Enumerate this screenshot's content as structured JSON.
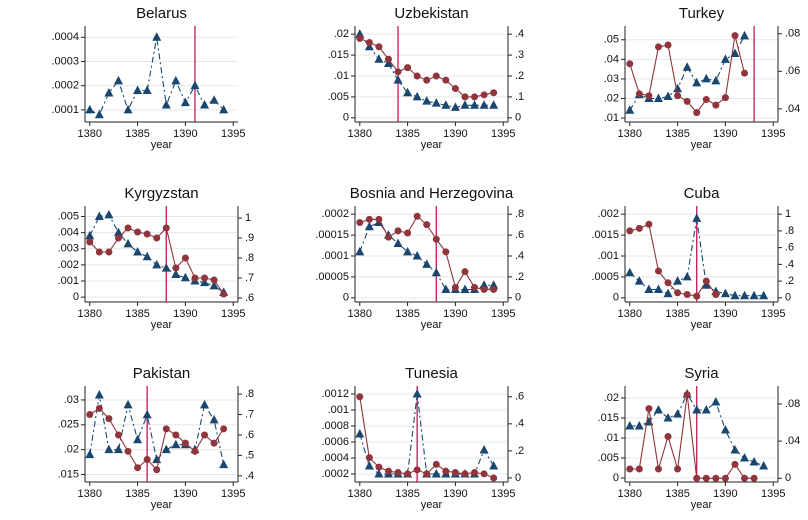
{
  "chart_data": [
    {
      "type": "line",
      "title": "Belarus",
      "xlabel": "year",
      "x": [
        1380,
        1381,
        1382,
        1383,
        1384,
        1385,
        1386,
        1387,
        1388,
        1389,
        1390,
        1391,
        1392,
        1393,
        1394
      ],
      "xlim": [
        1379.5,
        1395.5
      ],
      "xticks": [
        1380,
        1385,
        1390,
        1395
      ],
      "ylim": [
        5e-05,
        0.00043
      ],
      "yticks": [
        {
          "value": 0.0001,
          "label": ".0001"
        },
        {
          "value": 0.0002,
          "label": ".0002"
        },
        {
          "value": 0.0003,
          "label": ".0003"
        },
        {
          "value": 0.0004,
          "label": ".0004"
        }
      ],
      "vline": 1391,
      "grid": true,
      "series": [
        {
          "color": "#1a476f",
          "marker": "triangle",
          "dashed": true,
          "values": [
            0.0001,
            8e-05,
            0.00017,
            0.00022,
            0.0001,
            0.00018,
            0.00018,
            0.0004,
            0.00012,
            0.00022,
            0.00013,
            0.0002,
            0.00012,
            0.00014,
            0.0001
          ]
        }
      ]
    },
    {
      "type": "line",
      "title": "Uzbekistan",
      "xlabel": "year",
      "x": [
        1380,
        1381,
        1382,
        1383,
        1384,
        1385,
        1386,
        1387,
        1388,
        1389,
        1390,
        1391,
        1392,
        1393,
        1394
      ],
      "xlim": [
        1379.5,
        1395.5
      ],
      "xticks": [
        1380,
        1385,
        1390,
        1395
      ],
      "ylim": [
        -0.001,
        0.021
      ],
      "yticks": [
        0,
        {
          "value": 0.005,
          "label": ".005"
        },
        {
          "value": 0.01,
          "label": ".01"
        },
        {
          "value": 0.015,
          "label": ".015"
        },
        {
          "value": 0.02,
          "label": ".02"
        }
      ],
      "y2lim": [
        -0.02,
        0.42
      ],
      "y2ticks": [
        0,
        {
          "value": 0.1,
          "label": ".1"
        },
        {
          "value": 0.2,
          "label": ".2"
        },
        {
          "value": 0.3,
          "label": ".3"
        },
        {
          "value": 0.4,
          "label": ".4"
        }
      ],
      "vline": 1384,
      "grid": true,
      "series": [
        {
          "color": "#1a476f",
          "marker": "triangle",
          "dashed": true,
          "values": [
            0.02,
            0.017,
            0.014,
            0.013,
            0.009,
            0.006,
            0.005,
            0.004,
            0.0035,
            0.003,
            0.0025,
            0.003,
            0.003,
            0.003,
            0.003
          ]
        },
        {
          "color": "#90353b",
          "marker": "circle",
          "axis": "y2",
          "values": [
            0.38,
            0.36,
            0.34,
            0.28,
            0.22,
            0.24,
            0.2,
            0.18,
            0.2,
            0.18,
            0.14,
            0.1,
            0.1,
            0.11,
            0.12
          ]
        }
      ]
    },
    {
      "type": "line",
      "title": "Turkey",
      "xlabel": "year",
      "x": [
        1380,
        1381,
        1382,
        1383,
        1384,
        1385,
        1386,
        1387,
        1388,
        1389,
        1390,
        1391,
        1392
      ],
      "xlim": [
        1379.5,
        1395.5
      ],
      "xticks": [
        1380,
        1385,
        1390,
        1395
      ],
      "ylim": [
        0.008,
        0.055
      ],
      "yticks": [
        {
          "value": 0.01,
          "label": ".01"
        },
        {
          "value": 0.02,
          "label": ".02"
        },
        {
          "value": 0.03,
          "label": ".03"
        },
        {
          "value": 0.04,
          "label": ".04"
        },
        {
          "value": 0.05,
          "label": ".05"
        }
      ],
      "y2lim": [
        0.033,
        0.082
      ],
      "y2ticks": [
        {
          "value": 0.04,
          "label": ".04"
        },
        {
          "value": 0.06,
          "label": ".06"
        },
        {
          "value": 0.08,
          "label": ".08"
        }
      ],
      "vline": 1393,
      "grid": true,
      "series": [
        {
          "color": "#1a476f",
          "marker": "triangle",
          "dashed": true,
          "values": [
            0.014,
            0.022,
            0.02,
            0.02,
            0.021,
            0.025,
            0.036,
            0.028,
            0.03,
            0.029,
            0.04,
            0.043,
            0.052
          ]
        },
        {
          "color": "#90353b",
          "marker": "circle",
          "axis": "y2",
          "values": [
            0.064,
            0.048,
            0.047,
            0.073,
            0.074,
            0.047,
            0.044,
            0.038,
            0.045,
            0.042,
            0.046,
            0.079,
            0.059
          ]
        }
      ]
    },
    {
      "type": "line",
      "title": "Kyrgyzstan",
      "xlabel": "year",
      "x": [
        1380,
        1381,
        1382,
        1383,
        1384,
        1385,
        1386,
        1387,
        1388,
        1389,
        1390,
        1391,
        1392,
        1393,
        1394
      ],
      "xlim": [
        1379.5,
        1395.5
      ],
      "xticks": [
        1380,
        1385,
        1390,
        1395
      ],
      "ylim": [
        -0.0003,
        0.0054
      ],
      "yticks": [
        0,
        {
          "value": 0.001,
          "label": ".001"
        },
        {
          "value": 0.002,
          "label": ".002"
        },
        {
          "value": 0.003,
          "label": ".003"
        },
        {
          "value": 0.004,
          "label": ".004"
        },
        {
          "value": 0.005,
          "label": ".005"
        }
      ],
      "y2lim": [
        0.58,
        1.04
      ],
      "y2ticks": [
        {
          "value": 0.6,
          "label": ".6"
        },
        {
          "value": 0.7,
          "label": ".7"
        },
        {
          "value": 0.8,
          "label": ".8"
        },
        {
          "value": 0.9,
          "label": ".9"
        },
        1
      ],
      "vline": 1388,
      "grid": true,
      "series": [
        {
          "color": "#1a476f",
          "marker": "triangle",
          "dashed": true,
          "values": [
            0.0038,
            0.005,
            0.0051,
            0.004,
            0.0033,
            0.0028,
            0.0025,
            0.002,
            0.0018,
            0.0014,
            0.0012,
            0.001,
            0.0009,
            0.0007,
            0.0003
          ]
        },
        {
          "color": "#90353b",
          "marker": "circle",
          "axis": "y2",
          "values": [
            0.88,
            0.83,
            0.83,
            0.9,
            0.95,
            0.93,
            0.92,
            0.9,
            0.95,
            0.75,
            0.8,
            0.7,
            0.7,
            0.69,
            0.62
          ]
        }
      ]
    },
    {
      "type": "line",
      "title": "Bosnia and Herzegovina",
      "xlabel": "year",
      "x": [
        1380,
        1381,
        1382,
        1383,
        1384,
        1385,
        1386,
        1387,
        1388,
        1389,
        1390,
        1391,
        1392,
        1393,
        1394
      ],
      "xlim": [
        1379.5,
        1395.5
      ],
      "xticks": [
        1380,
        1385,
        1390,
        1395
      ],
      "ylim": [
        -1e-05,
        0.00021
      ],
      "yticks": [
        0,
        {
          "value": 5e-05,
          "label": ".00005"
        },
        {
          "value": 0.0001,
          "label": ".0001"
        },
        {
          "value": 0.00015,
          "label": ".00015"
        },
        {
          "value": 0.0002,
          "label": ".0002"
        }
      ],
      "y2lim": [
        -0.04,
        0.84
      ],
      "y2ticks": [
        0,
        {
          "value": 0.2,
          "label": ".2"
        },
        {
          "value": 0.4,
          "label": ".4"
        },
        {
          "value": 0.6,
          "label": ".6"
        },
        {
          "value": 0.8,
          "label": ".8"
        }
      ],
      "vline": 1388,
      "grid": true,
      "series": [
        {
          "color": "#1a476f",
          "marker": "triangle",
          "dashed": true,
          "values": [
            0.00011,
            0.00017,
            0.00018,
            0.00015,
            0.00013,
            0.00011,
            0.0001,
            8e-05,
            6e-05,
            2e-05,
            2e-05,
            2e-05,
            2e-05,
            3e-05,
            3e-05
          ]
        },
        {
          "color": "#90353b",
          "marker": "circle",
          "axis": "y2",
          "values": [
            0.72,
            0.75,
            0.75,
            0.58,
            0.64,
            0.62,
            0.78,
            0.7,
            0.56,
            0.44,
            0.1,
            0.25,
            0.1,
            0.08,
            0.08
          ]
        }
      ]
    },
    {
      "type": "line",
      "title": "Cuba",
      "xlabel": "year",
      "x": [
        1380,
        1381,
        1382,
        1383,
        1384,
        1385,
        1386,
        1387,
        1388,
        1389,
        1390,
        1391,
        1392,
        1393,
        1394
      ],
      "xlim": [
        1379.5,
        1395.5
      ],
      "xticks": [
        1380,
        1385,
        1390,
        1395
      ],
      "ylim": [
        -0.0001,
        0.0021
      ],
      "yticks": [
        0,
        {
          "value": 0.0005,
          "label": ".0005"
        },
        {
          "value": 0.001,
          "label": ".001"
        },
        {
          "value": 0.0015,
          "label": ".0015"
        },
        {
          "value": 0.002,
          "label": ".002"
        }
      ],
      "y2lim": [
        -0.05,
        1.05
      ],
      "y2ticks": [
        0,
        {
          "value": 0.2,
          "label": ".2"
        },
        {
          "value": 0.4,
          "label": ".4"
        },
        {
          "value": 0.6,
          "label": ".6"
        },
        {
          "value": 0.8,
          "label": ".8"
        },
        1
      ],
      "vline": 1387,
      "grid": true,
      "series": [
        {
          "color": "#1a476f",
          "marker": "triangle",
          "dashed": true,
          "values": [
            0.0006,
            0.0004,
            0.0002,
            0.0002,
            0.0001,
            0.0004,
            0.0005,
            0.0019,
            0.0003,
            0.00015,
            0.0001,
            5e-05,
            5e-05,
            5e-05,
            5e-05
          ]
        },
        {
          "color": "#90353b",
          "marker": "circle",
          "axis": "y2",
          "values": [
            0.8,
            0.83,
            0.88,
            0.32,
            0.18,
            0.06,
            0.04,
            0.02,
            0.2,
            0.04,
            null,
            null,
            null,
            null,
            null
          ]
        }
      ]
    },
    {
      "type": "line",
      "title": "Pakistan",
      "xlabel": "year",
      "x": [
        1380,
        1381,
        1382,
        1383,
        1384,
        1385,
        1386,
        1387,
        1388,
        1389,
        1390,
        1391,
        1392,
        1393,
        1394
      ],
      "xlim": [
        1379.5,
        1395.5
      ],
      "xticks": [
        1380,
        1385,
        1390,
        1395
      ],
      "ylim": [
        0.0135,
        0.032
      ],
      "yticks": [
        {
          "value": 0.015,
          "label": ".015"
        },
        {
          "value": 0.02,
          "label": ".02"
        },
        {
          "value": 0.025,
          "label": ".025"
        },
        {
          "value": 0.03,
          "label": ".03"
        }
      ],
      "y2lim": [
        0.37,
        0.82
      ],
      "y2ticks": [
        {
          "value": 0.4,
          "label": ".4"
        },
        {
          "value": 0.5,
          "label": ".5"
        },
        {
          "value": 0.6,
          "label": ".6"
        },
        {
          "value": 0.7,
          "label": ".7"
        },
        {
          "value": 0.8,
          "label": ".8"
        }
      ],
      "vline": 1386,
      "grid": true,
      "series": [
        {
          "color": "#1a476f",
          "marker": "triangle",
          "dashed": true,
          "values": [
            0.019,
            0.031,
            0.02,
            0.02,
            0.029,
            0.022,
            0.027,
            0.018,
            0.02,
            0.021,
            0.021,
            0.02,
            0.029,
            0.026,
            0.017
          ]
        },
        {
          "color": "#90353b",
          "marker": "circle",
          "axis": "y2",
          "values": [
            0.7,
            0.73,
            0.68,
            0.6,
            0.52,
            0.44,
            0.48,
            0.43,
            0.63,
            0.6,
            0.56,
            0.52,
            0.6,
            0.56,
            0.63
          ]
        }
      ]
    },
    {
      "type": "line",
      "title": "Tunesia",
      "xlabel": "year",
      "x": [
        1380,
        1381,
        1382,
        1383,
        1384,
        1385,
        1386,
        1387,
        1388,
        1389,
        1390,
        1391,
        1392,
        1393,
        1394
      ],
      "xlim": [
        1379.5,
        1395.5
      ],
      "xticks": [
        1380,
        1385,
        1390,
        1395
      ],
      "ylim": [
        0.0001,
        0.00125
      ],
      "yticks": [
        {
          "value": 0.0002,
          "label": ".0002"
        },
        {
          "value": 0.0004,
          "label": ".0004"
        },
        {
          "value": 0.0006,
          "label": ".0006"
        },
        {
          "value": 0.0008,
          "label": ".0008"
        },
        {
          "value": 0.001,
          "label": ".001"
        },
        {
          "value": 0.0012,
          "label": ".0012"
        }
      ],
      "y2lim": [
        -0.03,
        0.65
      ],
      "y2ticks": [
        0,
        {
          "value": 0.2,
          "label": ".2"
        },
        {
          "value": 0.4,
          "label": ".4"
        },
        {
          "value": 0.6,
          "label": ".6"
        }
      ],
      "vline": 1386,
      "grid": true,
      "series": [
        {
          "color": "#1a476f",
          "marker": "triangle",
          "dashed": true,
          "values": [
            0.0007,
            0.0003,
            0.0002,
            0.0002,
            0.0002,
            0.0002,
            0.0012,
            0.0002,
            0.0002,
            0.0002,
            0.0002,
            0.0002,
            0.0002,
            0.0005,
            0.0003
          ]
        },
        {
          "color": "#90353b",
          "marker": "circle",
          "axis": "y2",
          "values": [
            0.6,
            0.15,
            0.08,
            0.05,
            0.04,
            0.03,
            0.06,
            0.03,
            0.1,
            0.05,
            0.04,
            0.03,
            0.04,
            0.03,
            0
          ]
        }
      ]
    },
    {
      "type": "line",
      "title": "Syria",
      "xlabel": "year",
      "x": [
        1380,
        1381,
        1382,
        1383,
        1384,
        1385,
        1386,
        1387,
        1388,
        1389,
        1390,
        1391,
        1392,
        1393,
        1394
      ],
      "xlim": [
        1379.5,
        1395.5
      ],
      "xticks": [
        1380,
        1385,
        1390,
        1395
      ],
      "ylim": [
        -0.001,
        0.022
      ],
      "yticks": [
        0,
        {
          "value": 0.005,
          "label": ".005"
        },
        {
          "value": 0.01,
          "label": ".01"
        },
        {
          "value": 0.015,
          "label": ".015"
        },
        {
          "value": 0.02,
          "label": ".02"
        }
      ],
      "y2lim": [
        -0.004,
        0.095
      ],
      "y2ticks": [
        0,
        {
          "value": 0.04,
          "label": ".04"
        },
        {
          "value": 0.08,
          "label": ".08"
        }
      ],
      "vline": 1387,
      "grid": true,
      "series": [
        {
          "color": "#1a476f",
          "marker": "triangle",
          "dashed": true,
          "values": [
            0.013,
            0.013,
            0.014,
            0.017,
            0.015,
            0.016,
            0.021,
            0.017,
            0.017,
            0.019,
            0.012,
            0.007,
            0.005,
            0.004,
            0.003
          ]
        },
        {
          "color": "#90353b",
          "marker": "circle",
          "axis": "y2",
          "values": [
            0.01,
            0.01,
            0.075,
            0.01,
            0.045,
            0.01,
            0.09,
            0,
            0,
            0,
            0,
            0.015,
            0,
            0,
            null
          ]
        }
      ]
    }
  ]
}
